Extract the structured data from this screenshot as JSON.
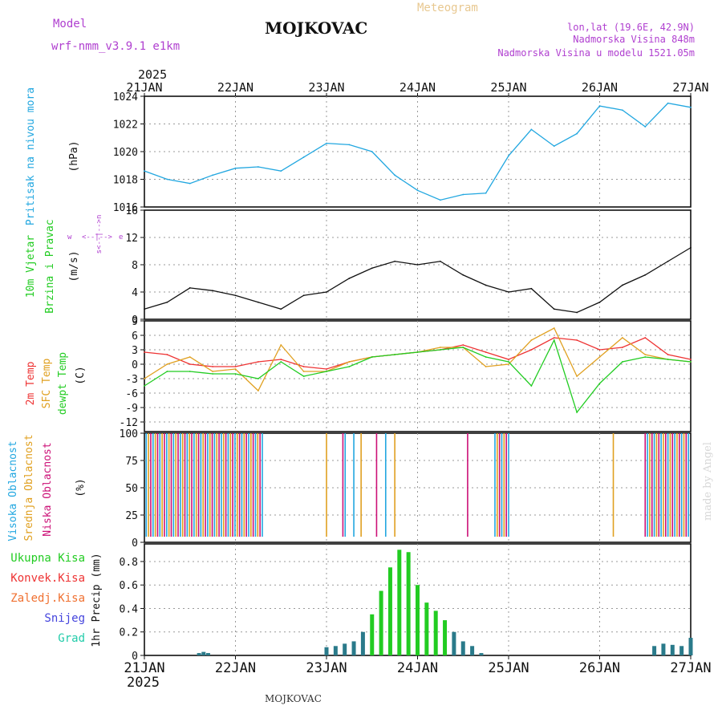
{
  "header": {
    "model_label": "Model",
    "model_name": "wrf-nmm_v3.9.1 e1km",
    "station": "MOJKOVAC",
    "product": "Meteogram",
    "coords": "lon,lat (19.6E, 42.9N)",
    "elev_station": "Nadmorska Visina 848m",
    "elev_model": "Nadmorska Visina u modelu 1521.05m",
    "watermark": "made by Angel",
    "footer_station": "MOJKOVAC"
  },
  "colors": {
    "pressure": "#22a7e0",
    "temp2m": "#ee3333",
    "sfc": "#e0a020",
    "dew": "#22cc22",
    "grid": "#999999",
    "title_purple": "#b040d0",
    "meteogram": "#e8c890"
  },
  "time_axis": {
    "year": "2025",
    "ticks": [
      "21JAN",
      "22JAN",
      "23JAN",
      "24JAN",
      "25JAN",
      "26JAN",
      "27JAN"
    ]
  },
  "chart_data": [
    {
      "type": "line",
      "panel": "pressure",
      "labels": [
        "Pritisak na nivou mora",
        "(hPa)"
      ],
      "ylim": [
        1016,
        1024
      ],
      "yticks": [
        "1016",
        "1018",
        "1020",
        "1022",
        "1024"
      ],
      "x": [
        0,
        0.25,
        0.5,
        0.75,
        1,
        1.25,
        1.5,
        1.75,
        2,
        2.25,
        2.5,
        2.75,
        3,
        3.25,
        3.5,
        3.75,
        4,
        4.25,
        4.5,
        4.75,
        5,
        5.25,
        5.5,
        5.75,
        6
      ],
      "series": [
        {
          "values": [
            1018.6,
            1018.0,
            1017.7,
            1018.3,
            1018.8,
            1018.9,
            1018.6,
            1019.6,
            1020.6,
            1020.5,
            1020.0,
            1018.3,
            1017.2,
            1016.5,
            1016.9,
            1017.0,
            1019.7,
            1021.6,
            1020.4,
            1021.3,
            1023.3,
            1023.0,
            1021.8,
            1023.5,
            1023.2
          ]
        }
      ]
    },
    {
      "type": "line",
      "panel": "wind",
      "labels": [
        "10m Vjetar",
        "Brzina i Pravac",
        "(m/s)"
      ],
      "direction_key": [
        "w",
        "<--|-->",
        "e",
        "s<--|-->n"
      ],
      "ylim": [
        0,
        16
      ],
      "yticks": [
        "0",
        "4",
        "8",
        "12",
        "16"
      ],
      "x": [
        0,
        0.25,
        0.5,
        0.75,
        1,
        1.25,
        1.5,
        1.75,
        2,
        2.25,
        2.5,
        2.75,
        3,
        3.25,
        3.5,
        3.75,
        4,
        4.25,
        4.5,
        4.75,
        5,
        5.25,
        5.5,
        5.75,
        6
      ],
      "series": [
        {
          "values": [
            1.5,
            2.5,
            4.6,
            4.2,
            3.5,
            2.5,
            1.5,
            3.5,
            4.0,
            6.0,
            7.5,
            8.5,
            8.0,
            8.5,
            6.5,
            5.0,
            4.0,
            4.5,
            1.5,
            1.0,
            2.5,
            5.0,
            6.5,
            8.5,
            10.5
          ]
        }
      ]
    },
    {
      "type": "line",
      "panel": "temperature",
      "labels": [
        "2m Temp",
        "SFC Temp",
        "dewpt Temp",
        "(C)"
      ],
      "ylim": [
        -14,
        9
      ],
      "yticks": [
        "9",
        "6",
        "3",
        "0",
        "-3",
        "-6",
        "-9",
        "-12"
      ],
      "x": [
        0,
        0.25,
        0.5,
        0.75,
        1,
        1.25,
        1.5,
        1.75,
        2,
        2.25,
        2.5,
        2.75,
        3,
        3.25,
        3.5,
        3.75,
        4,
        4.25,
        4.5,
        4.75,
        5,
        5.25,
        5.5,
        5.75,
        6
      ],
      "series": [
        {
          "name": "2m Temp",
          "values": [
            2.5,
            2.0,
            0.0,
            -0.5,
            -0.5,
            0.5,
            1.0,
            -0.5,
            -1.0,
            0.5,
            1.5,
            2.0,
            2.5,
            3.0,
            4.0,
            2.5,
            1.0,
            3.0,
            5.5,
            5.0,
            3.0,
            3.5,
            5.5,
            2.0,
            1.0
          ]
        },
        {
          "name": "SFC Temp",
          "values": [
            -3.0,
            0.0,
            1.5,
            -1.5,
            -1.0,
            -5.5,
            4.0,
            -1.5,
            -1.5,
            0.5,
            1.5,
            2.0,
            2.5,
            3.5,
            3.5,
            -0.5,
            0.0,
            5.0,
            7.5,
            -2.5,
            1.5,
            5.5,
            2.0,
            1.0,
            0.5
          ]
        },
        {
          "name": "dewpt Temp",
          "values": [
            -4.5,
            -1.5,
            -1.5,
            -2.0,
            -2.0,
            -3.0,
            0.5,
            -2.5,
            -1.5,
            -0.5,
            1.5,
            2.0,
            2.5,
            3.0,
            3.5,
            1.5,
            0.5,
            -4.5,
            5.0,
            -10.0,
            -4.0,
            0.5,
            1.5,
            1.0,
            0.5
          ]
        }
      ]
    },
    {
      "type": "bar",
      "panel": "clouds",
      "labels": [
        "Visoka Oblacnost",
        "Srednja Oblacnost",
        "Niska Oblacnost",
        "(%)"
      ],
      "ylim": [
        0,
        100
      ],
      "yticks": [
        "0",
        "25",
        "50",
        "75",
        "100"
      ],
      "coverage_periods_days": [
        [
          0.02,
          1.3
        ],
        [
          2.0,
          2.02
        ],
        [
          2.18,
          2.22
        ],
        [
          2.3,
          2.32
        ],
        [
          2.38,
          2.4
        ],
        [
          2.55,
          2.57
        ],
        [
          2.65,
          2.67
        ],
        [
          2.75,
          2.77
        ],
        [
          3.55,
          3.57
        ],
        [
          3.85,
          4.0
        ],
        [
          5.15,
          5.17
        ],
        [
          5.5,
          6.0
        ]
      ]
    },
    {
      "type": "bar",
      "panel": "precip",
      "labels": [
        "1hr Precip (mm)"
      ],
      "legend": [
        "Ukupna Kisa",
        "Konvek.Kisa",
        "Zaledj.Kisa",
        "Snijeg",
        "Grad"
      ],
      "ylim": [
        0,
        0.95
      ],
      "yticks": [
        "0",
        "0.2",
        "0.4",
        "0.6",
        "0.8"
      ],
      "x": [
        0.6,
        0.65,
        0.7,
        2.0,
        2.1,
        2.2,
        2.3,
        2.4,
        2.5,
        2.6,
        2.7,
        2.8,
        2.9,
        3.0,
        3.1,
        3.2,
        3.3,
        3.4,
        3.5,
        3.6,
        3.7,
        5.6,
        5.7,
        5.8,
        5.9,
        6.0
      ],
      "values": [
        0.02,
        0.03,
        0.02,
        0.07,
        0.08,
        0.1,
        0.12,
        0.2,
        0.35,
        0.55,
        0.75,
        0.9,
        0.88,
        0.6,
        0.45,
        0.38,
        0.3,
        0.2,
        0.12,
        0.08,
        0.02,
        0.08,
        0.1,
        0.09,
        0.08,
        0.15
      ]
    }
  ]
}
